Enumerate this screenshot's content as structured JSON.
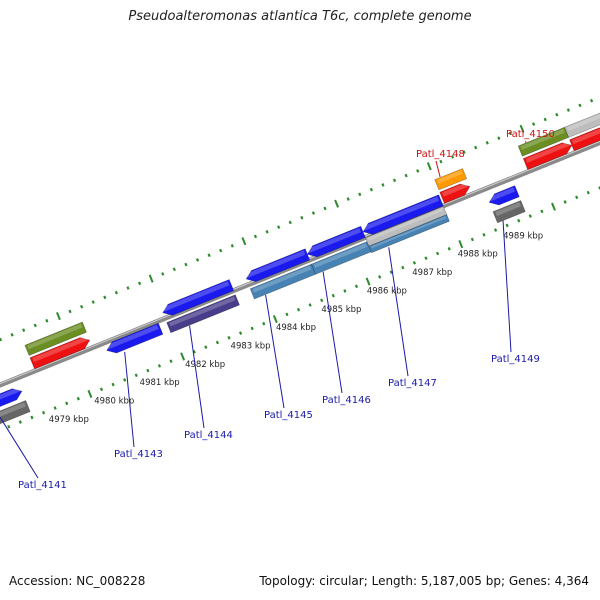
{
  "header": {
    "title": "Pseudoalteromonas atlantica T6c, complete genome"
  },
  "footer": {
    "accession_label": "Accession:",
    "accession": "NC_008228",
    "topology_label": "Topology:",
    "topology": "circular",
    "length_label": "Length:",
    "length": "5,187,005 bp",
    "genes_label": "Genes:",
    "genes": "4,364"
  },
  "colors": {
    "backbone": "#8a8a8a",
    "tick": "#2e8b2e",
    "cds_blue": "#1a1aee",
    "rna_red": "#ee1111",
    "gene_green": "#6b8e23",
    "grey": "#bdbdbd",
    "dark_grey": "#666666",
    "orange": "#ff9900",
    "steel": "#4682b4",
    "slate": "#483d8b",
    "label_blue": "#1a1aaa",
    "label_red": "#cc1111"
  },
  "ruler": {
    "unit": "kbp",
    "tick_labels": [
      "4979 kbp",
      "4980 kbp",
      "4981 kbp",
      "4982 kbp",
      "4983 kbp",
      "4984 kbp",
      "4985 kbp",
      "4986 kbp",
      "4987 kbp",
      "4988 kbp",
      "4989 kbp"
    ]
  },
  "gene_labels": [
    {
      "name": "Patl_4141",
      "color": "blue"
    },
    {
      "name": "Patl_4143",
      "color": "blue"
    },
    {
      "name": "Patl_4144",
      "color": "blue"
    },
    {
      "name": "Patl_4145",
      "color": "blue"
    },
    {
      "name": "Patl_4146",
      "color": "blue"
    },
    {
      "name": "Patl_4147",
      "color": "blue"
    },
    {
      "name": "Patl_4148",
      "color": "red"
    },
    {
      "name": "Patl_4149",
      "color": "blue"
    },
    {
      "name": "Patl_4150",
      "color": "red"
    }
  ]
}
